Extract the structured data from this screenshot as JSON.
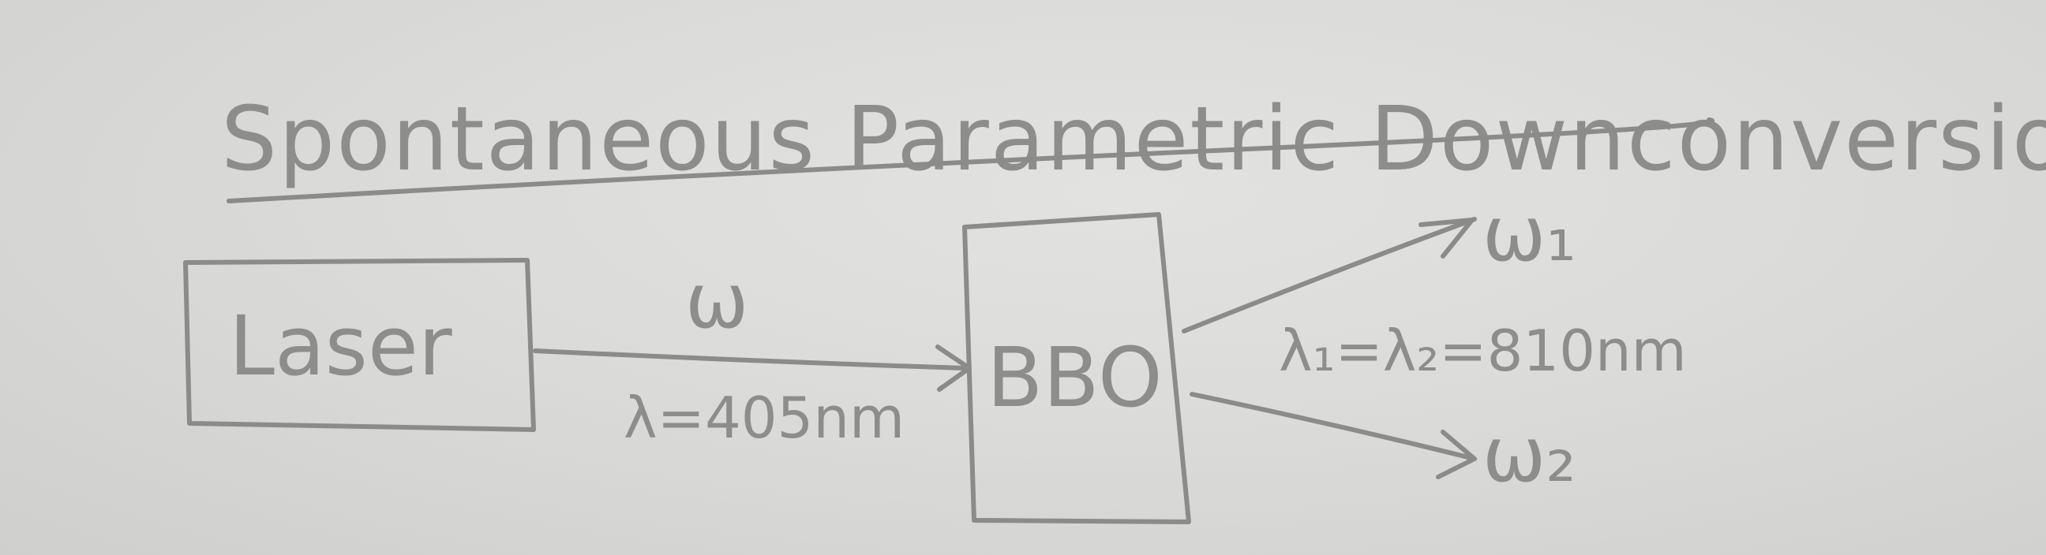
{
  "diagram": {
    "title": "Spontaneous Parametric Downconversion",
    "laser_label": "Laser",
    "crystal_label": "BBO",
    "pump_frequency": "ω",
    "pump_wavelength": "λ=405nm",
    "signal_frequency": "ω₁",
    "idler_frequency": "ω₂",
    "output_wavelength": "λ₁=λ₂=810nm"
  },
  "colors": {
    "paper": "#d9d9d7",
    "pencil": "#8b8b89"
  }
}
